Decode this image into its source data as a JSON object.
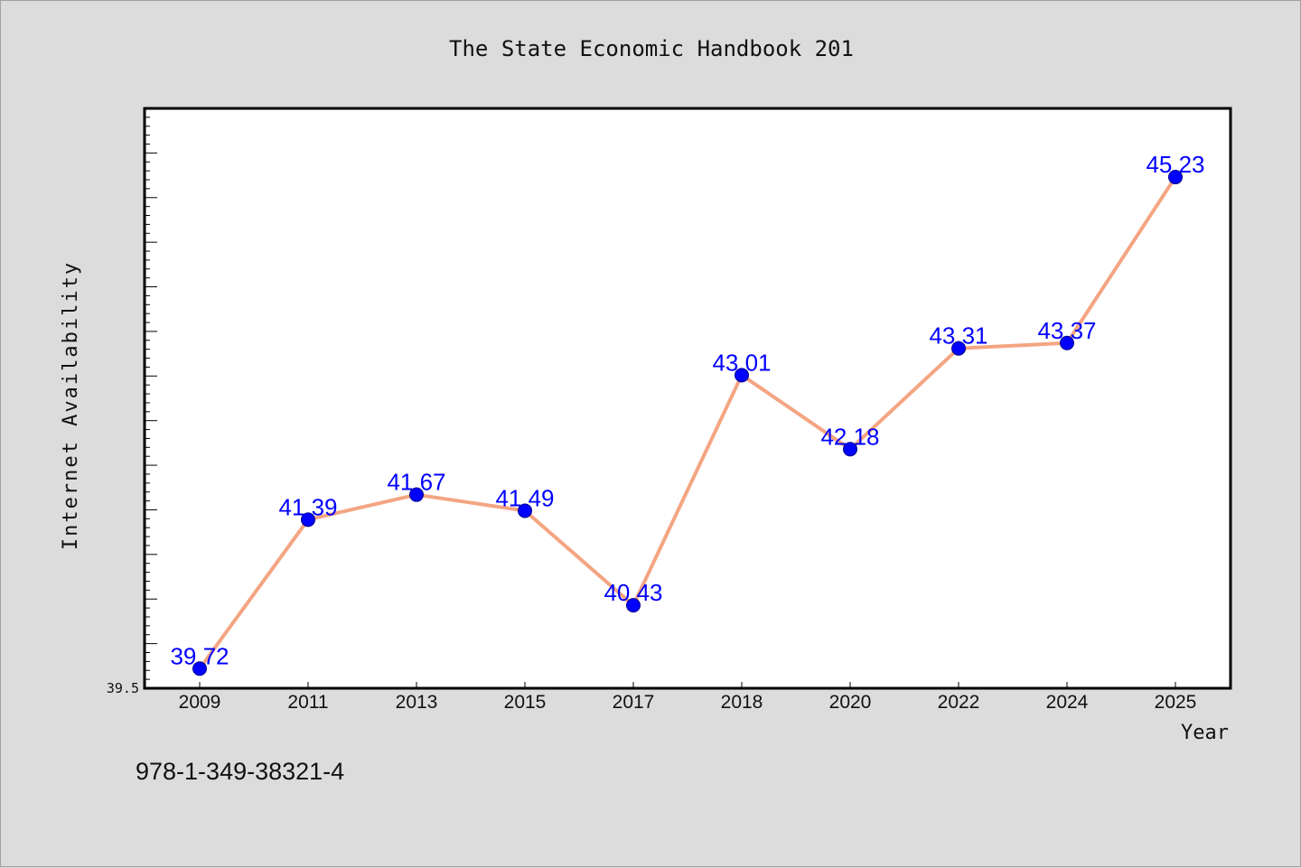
{
  "page": {
    "title": "The State Economic Handbook 201",
    "footer_code": "978-1-349-38321-4"
  },
  "colors": {
    "background": "#dcdcdc",
    "plot_background": "#ffffff",
    "line": "#f4a582",
    "marker": "#0000ff",
    "data_label": "#0000ff"
  },
  "chart_data": {
    "type": "line",
    "title": "The State Economic Handbook 201",
    "xlabel": "Year",
    "ylabel": "Internet Availability",
    "categories": [
      "2009",
      "2011",
      "2013",
      "2015",
      "2017",
      "2018",
      "2020",
      "2022",
      "2024",
      "2025"
    ],
    "series": [
      {
        "values": [
          39.72,
          41.39,
          41.67,
          41.49,
          40.43,
          43.01,
          42.18,
          43.31,
          43.37,
          45.23
        ],
        "labels": [
          "39.72",
          "41.39",
          "41.67",
          "41.49",
          "40.43",
          "43.01",
          "42.18",
          "43.31",
          "43.37",
          "45.23"
        ]
      }
    ],
    "ylim": [
      39.5,
      46.0
    ],
    "y_tick_label": "39.5",
    "grid": false,
    "legend": "none"
  }
}
